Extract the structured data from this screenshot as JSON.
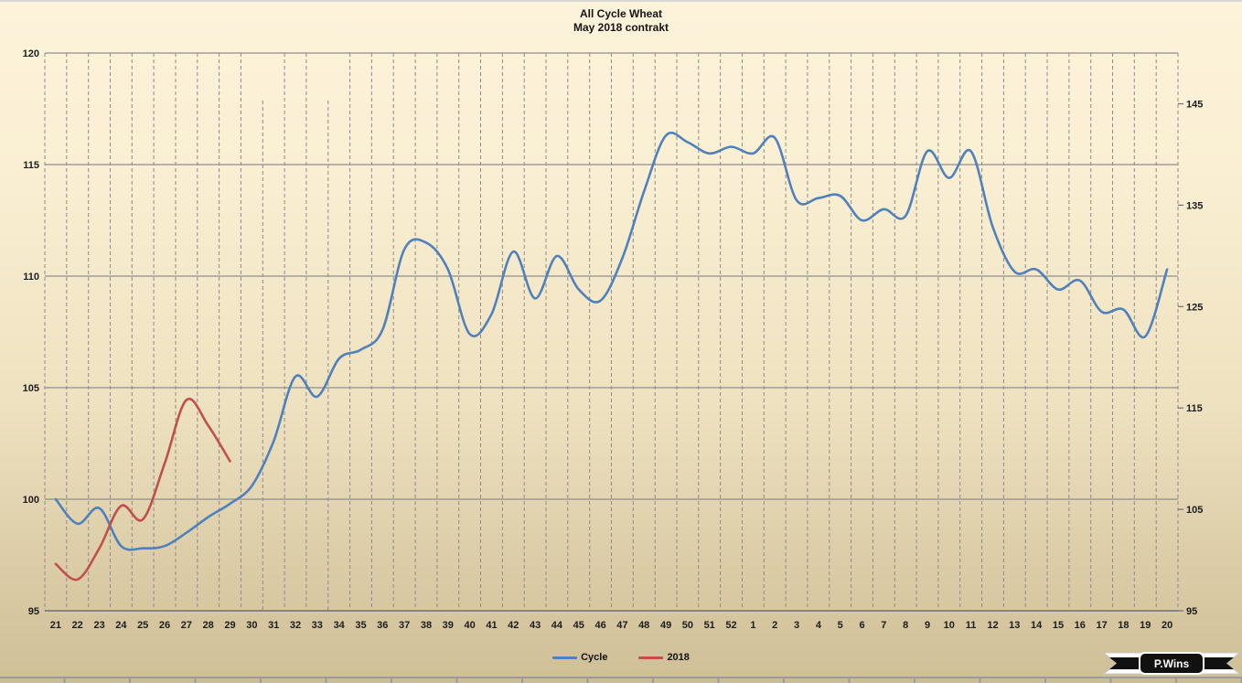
{
  "chart_data": {
    "type": "line",
    "title": "All Cycle Wheat",
    "subtitle": "May 2018 contrakt",
    "x_labels": [
      "21",
      "22",
      "23",
      "24",
      "25",
      "26",
      "27",
      "28",
      "29",
      "30",
      "31",
      "32",
      "33",
      "34",
      "35",
      "36",
      "37",
      "38",
      "39",
      "40",
      "41",
      "42",
      "43",
      "44",
      "45",
      "46",
      "47",
      "48",
      "49",
      "50",
      "51",
      "52",
      "1",
      "2",
      "3",
      "4",
      "5",
      "6",
      "7",
      "8",
      "9",
      "10",
      "11",
      "12",
      "13",
      "14",
      "15",
      "16",
      "17",
      "18",
      "19",
      "20"
    ],
    "left_axis": {
      "min": 95,
      "max": 120,
      "ticks": [
        95,
        100,
        105,
        110,
        115,
        120
      ]
    },
    "right_axis": {
      "min": 95,
      "max": 150,
      "ticks": [
        95,
        105,
        115,
        125,
        135,
        145
      ]
    },
    "grid": {
      "horizontal": "solid",
      "vertical": "dashed",
      "legend_position": "bottom"
    },
    "series": [
      {
        "name": "Cycle",
        "color": "#4f81bd",
        "axis": "left",
        "values": [
          100.0,
          98.9,
          99.6,
          97.9,
          97.8,
          97.9,
          98.5,
          99.2,
          99.8,
          100.6,
          102.6,
          105.5,
          104.6,
          106.3,
          106.7,
          107.6,
          111.2,
          111.5,
          110.3,
          107.4,
          108.3,
          111.1,
          109.0,
          110.9,
          109.4,
          108.9,
          110.8,
          113.8,
          116.3,
          116.0,
          115.5,
          115.8,
          115.5,
          116.2,
          113.4,
          113.5,
          113.6,
          112.5,
          113.0,
          112.7,
          115.6,
          114.4,
          115.6,
          112.2,
          110.2,
          110.3,
          109.4,
          109.8,
          108.4,
          108.5,
          107.3,
          110.3
        ]
      },
      {
        "name": "2018",
        "color": "#c0504d",
        "axis": "left",
        "values": [
          97.1,
          96.4,
          97.8,
          99.7,
          99.1,
          101.6,
          104.45,
          103.3,
          101.7
        ]
      }
    ]
  },
  "legend": {
    "items": [
      "Cycle",
      "2018"
    ]
  },
  "logo": {
    "text": "P.Wins"
  }
}
